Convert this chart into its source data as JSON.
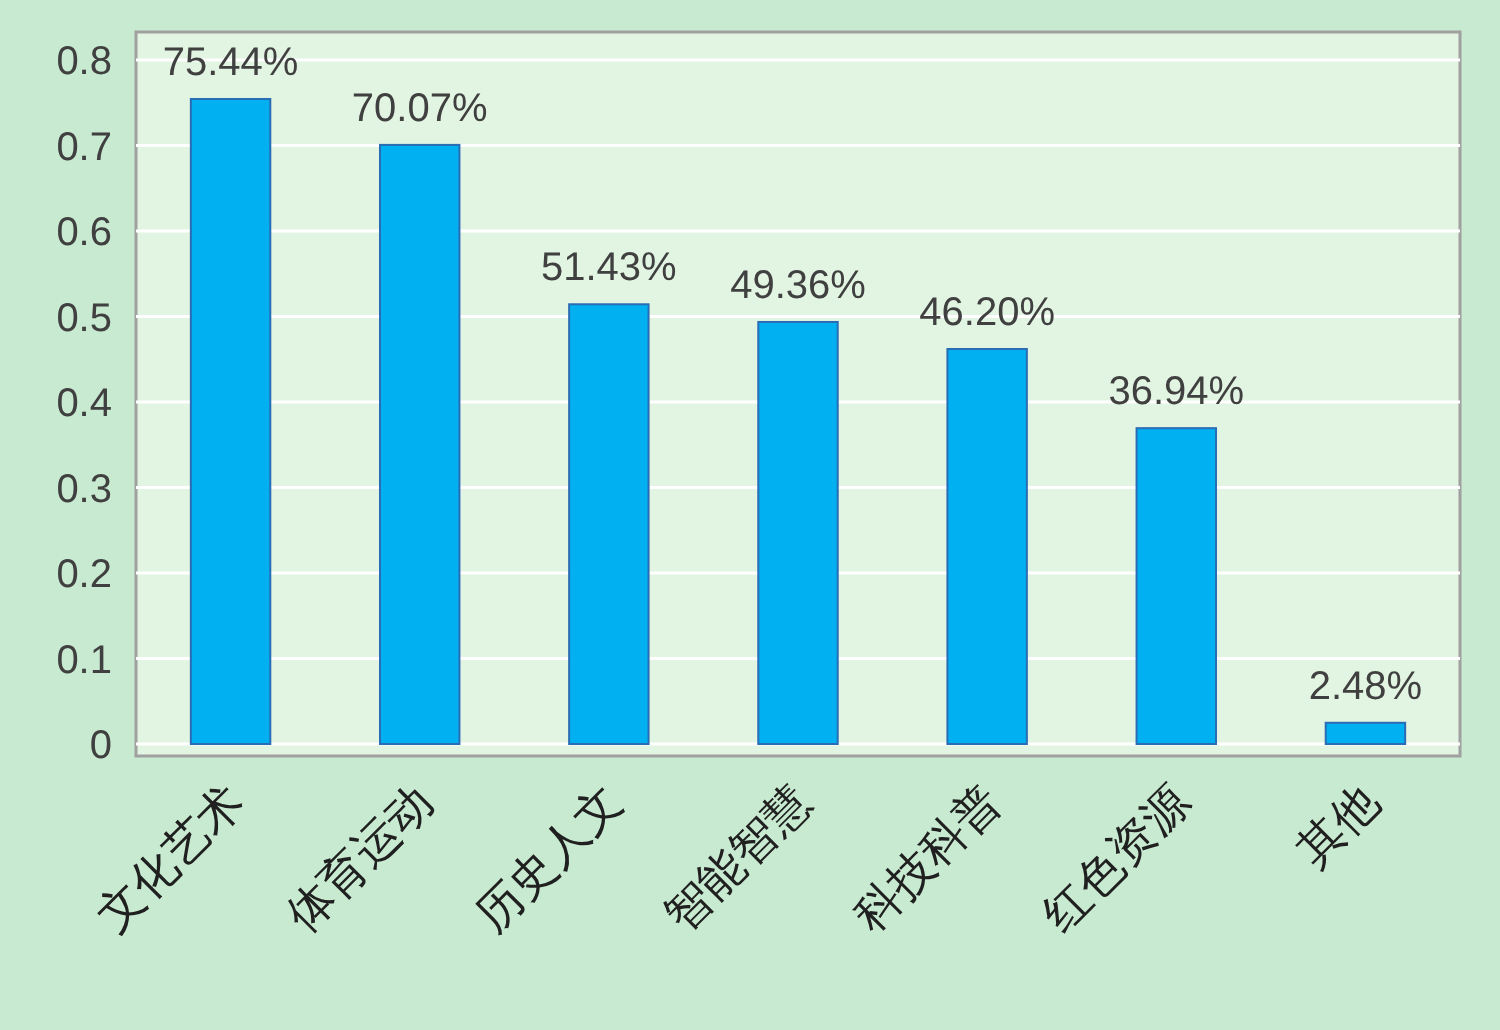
{
  "chart_data": {
    "type": "bar",
    "categories": [
      "文化艺术",
      "体育运动",
      "历史人文",
      "智能智慧",
      "科技科普",
      "红色资源",
      "其他"
    ],
    "values": [
      0.7544,
      0.7007,
      0.5143,
      0.4936,
      0.462,
      0.3694,
      0.0248
    ],
    "value_labels": [
      "75.44%",
      "70.07%",
      "51.43%",
      "49.36%",
      "46.20%",
      "36.94%",
      "2.48%"
    ],
    "color": "#00b0f0",
    "ylim": [
      0,
      0.8
    ],
    "yticks": [
      0,
      0.1,
      0.2,
      0.3,
      0.4,
      0.5,
      0.6,
      0.7,
      0.8
    ],
    "grid": "y"
  }
}
